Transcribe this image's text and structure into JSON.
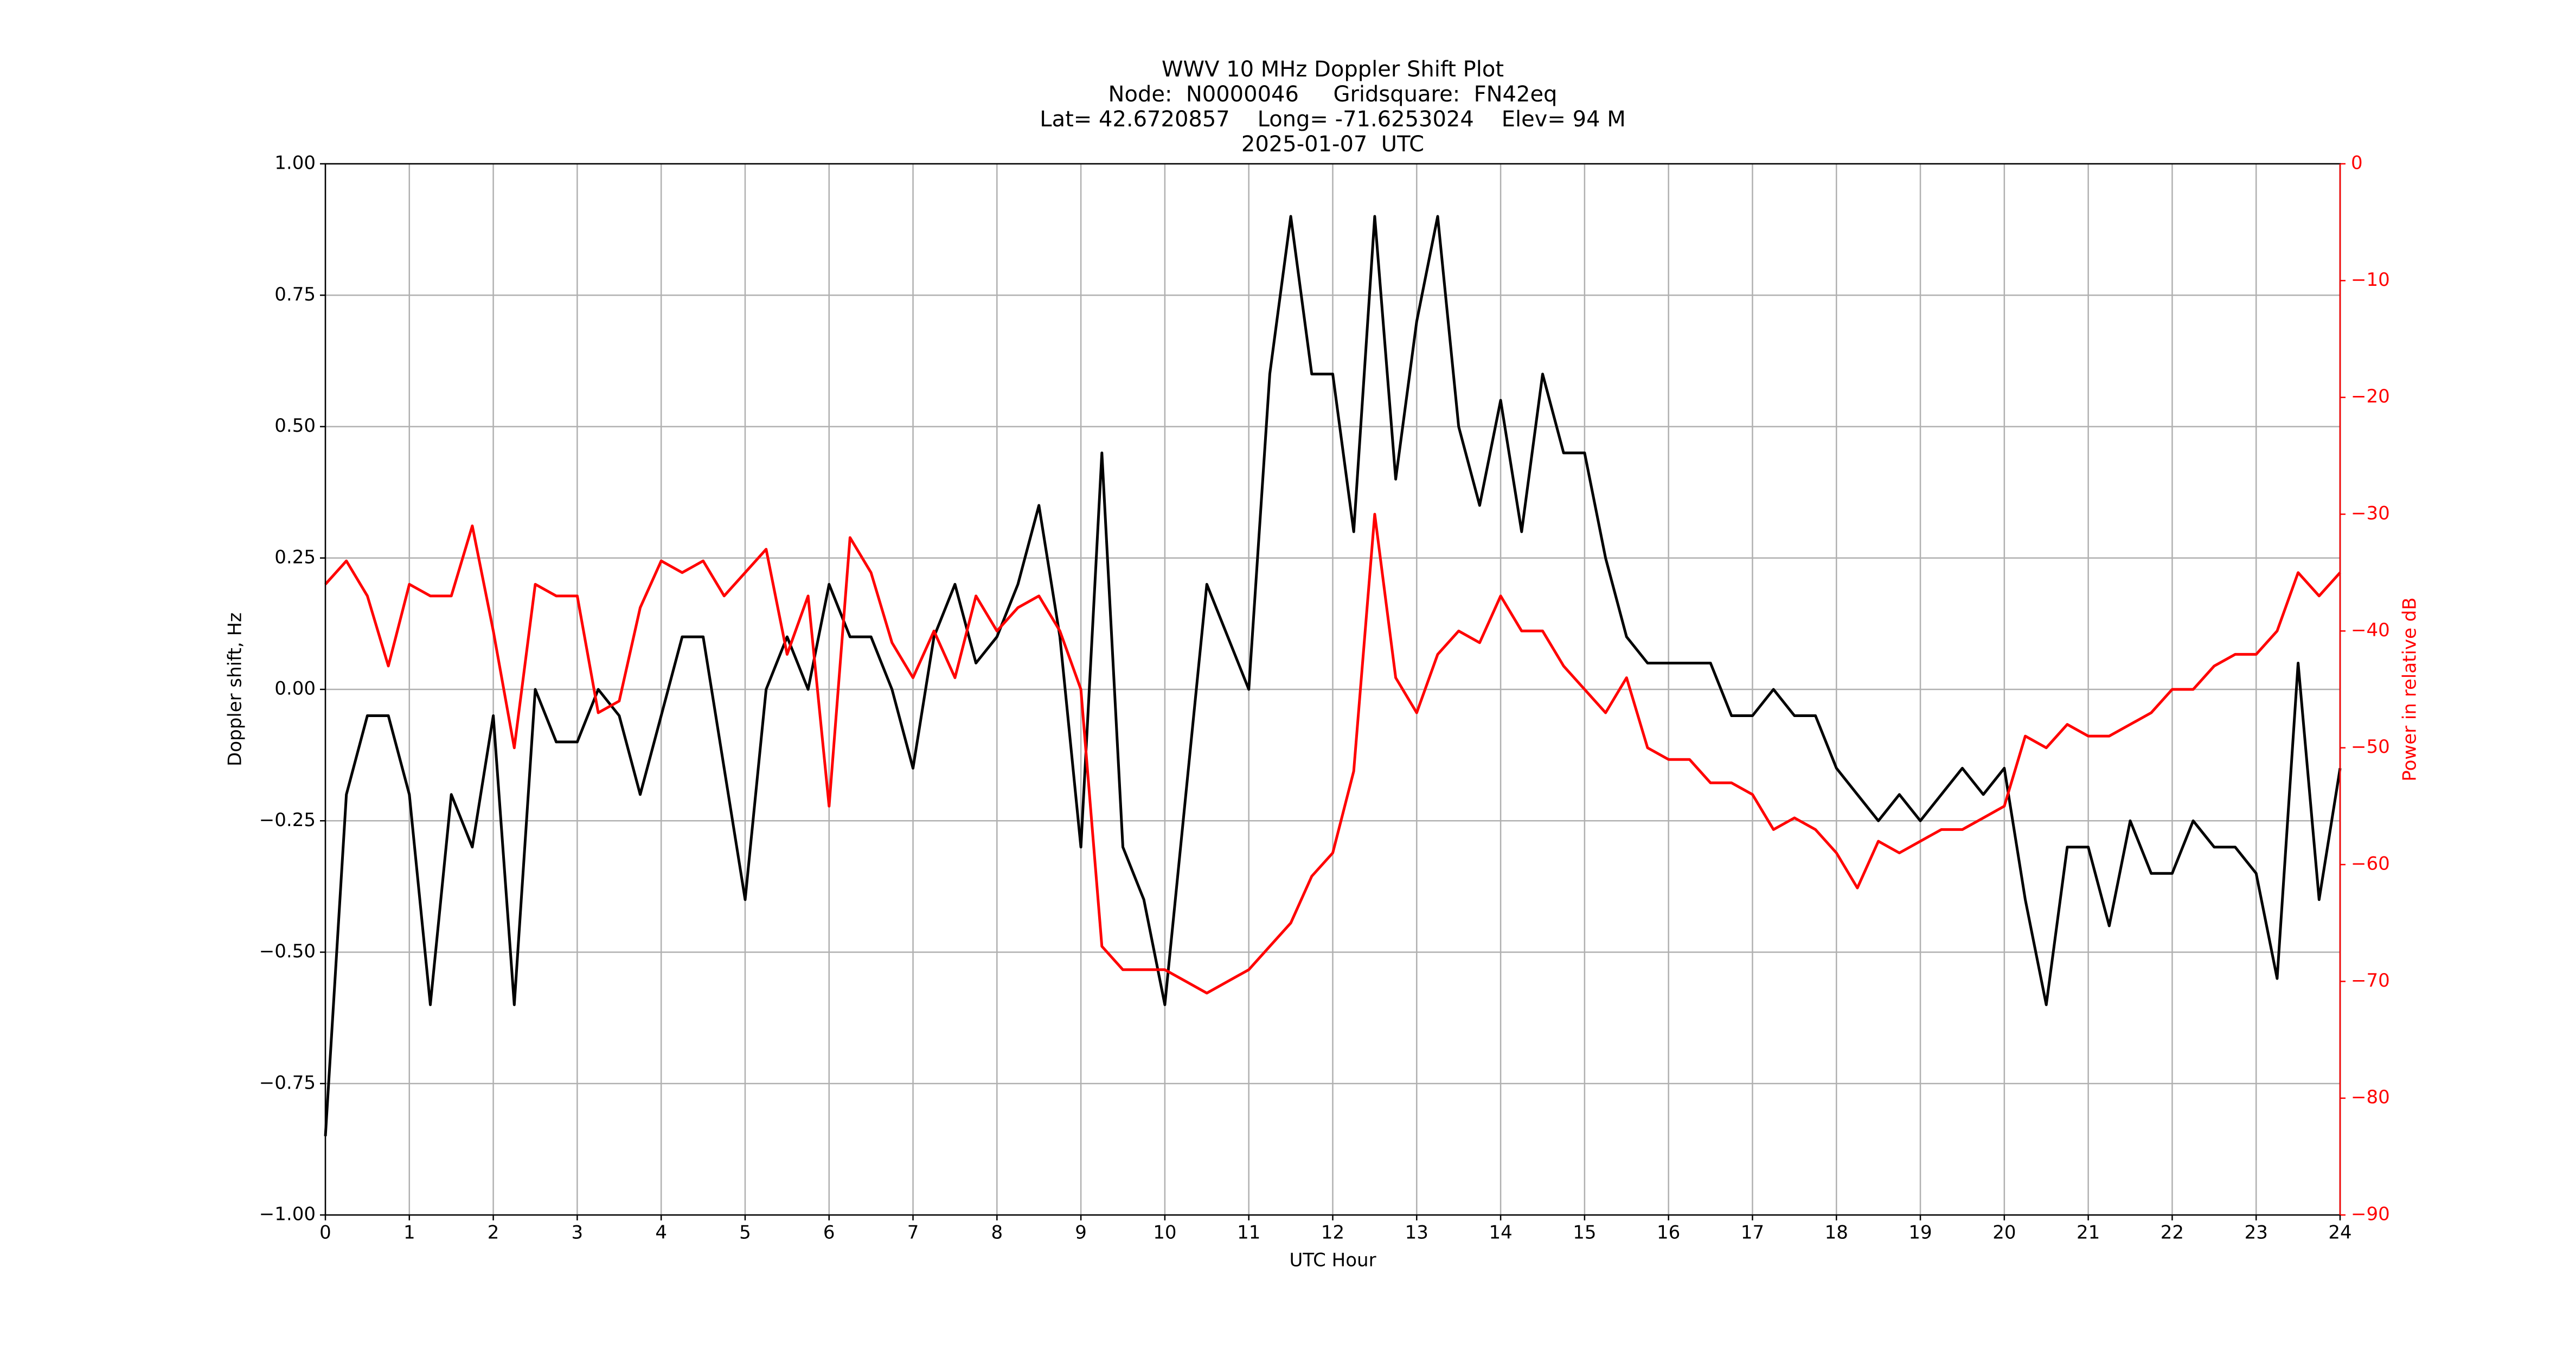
{
  "chart_data": {
    "type": "line",
    "title": [
      "WWV 10 MHz Doppler Shift Plot",
      "Node:  N0000046     Gridsquare:  FN42eq",
      "Lat= 42.6720857    Long= -71.6253024    Elev= 94 M",
      "2025-01-07  UTC"
    ],
    "xlabel": "UTC Hour",
    "ylabel": "Doppler shift, Hz",
    "y2label": "Power in relative dB",
    "y2color": "#ff0000",
    "grid": true,
    "x": [
      0,
      0.25,
      0.5,
      0.75,
      1,
      1.25,
      1.5,
      1.75,
      2,
      2.25,
      2.5,
      2.75,
      3,
      3.25,
      3.5,
      3.75,
      4,
      4.25,
      4.5,
      4.75,
      5,
      5.25,
      5.5,
      5.75,
      6,
      6.25,
      6.5,
      6.75,
      7,
      7.25,
      7.5,
      7.75,
      8,
      8.25,
      8.5,
      8.75,
      9,
      9.25,
      9.5,
      9.75,
      10,
      10.25,
      10.5,
      10.75,
      11,
      11.25,
      11.5,
      11.75,
      12,
      12.25,
      12.5,
      12.75,
      13,
      13.25,
      13.5,
      13.75,
      14,
      14.25,
      14.5,
      14.75,
      15,
      15.25,
      15.5,
      15.75,
      16,
      16.25,
      16.5,
      16.75,
      17,
      17.25,
      17.5,
      17.75,
      18,
      18.25,
      18.5,
      18.75,
      19,
      19.25,
      19.5,
      19.75,
      20,
      20.25,
      20.5,
      20.75,
      21,
      21.25,
      21.5,
      21.75,
      22,
      22.25,
      22.5,
      22.75,
      23,
      23.25,
      23.5,
      23.75,
      24
    ],
    "series": [
      {
        "color": "#000000",
        "values": [
          -0.85,
          -0.2,
          -0.05,
          -0.05,
          -0.2,
          -0.6,
          -0.2,
          -0.3,
          -0.05,
          -0.6,
          0.0,
          -0.1,
          -0.1,
          0.0,
          -0.05,
          -0.2,
          -0.05,
          0.1,
          0.1,
          -0.15,
          -0.4,
          0.0,
          0.1,
          0.0,
          0.2,
          0.1,
          0.1,
          0.0,
          -0.15,
          0.1,
          0.2,
          0.05,
          0.1,
          0.2,
          0.35,
          0.1,
          -0.3,
          0.45,
          -0.3,
          -0.4,
          -0.6,
          -0.2,
          0.2,
          0.1,
          0.0,
          0.6,
          0.9,
          0.6,
          0.6,
          0.3,
          0.9,
          0.4,
          0.7,
          0.9,
          0.5,
          0.35,
          0.55,
          0.3,
          0.6,
          0.45,
          0.45,
          0.25,
          0.1,
          0.05,
          0.05,
          0.05,
          0.05,
          -0.05,
          -0.05,
          0.0,
          -0.05,
          -0.05,
          -0.15,
          -0.2,
          -0.25,
          -0.2,
          -0.25,
          -0.2,
          -0.15,
          -0.2,
          -0.15,
          -0.4,
          -0.6,
          -0.3,
          -0.3,
          -0.45,
          -0.25,
          -0.35,
          -0.35,
          -0.25,
          -0.3,
          -0.3,
          -0.35,
          -0.55,
          0.05,
          -0.4,
          -0.15
        ]
      },
      {
        "color": "#ff0000",
        "axis": "y2",
        "values": [
          -36,
          -34,
          -37,
          -43,
          -36,
          -37,
          -37,
          -31,
          -40,
          -50,
          -36,
          -37,
          -37,
          -47,
          -46,
          -38,
          -34,
          -35,
          -34,
          -37,
          -35,
          -33,
          -42,
          -37,
          -55,
          -32,
          -35,
          -41,
          -44,
          -40,
          -44,
          -37,
          -40,
          -38,
          -37,
          -40,
          -45,
          -67,
          -69,
          -69,
          -69,
          -70,
          -71,
          -70,
          -69,
          -67,
          -65,
          -61,
          -59,
          -52,
          -30,
          -44,
          -47,
          -42,
          -40,
          -41,
          -37,
          -40,
          -40,
          -43,
          -45,
          -47,
          -44,
          -50,
          -51,
          -51,
          -53,
          -53,
          -54,
          -57,
          -56,
          -57,
          -59,
          -62,
          -58,
          -59,
          -58,
          -57,
          -57,
          -56,
          -55,
          -49,
          -50,
          -48,
          -49,
          -49,
          -48,
          -47,
          -45,
          -45,
          -43,
          -42,
          -42,
          -40,
          -35,
          -37,
          -35
        ]
      }
    ],
    "xlim": [
      0,
      24
    ],
    "xticks": [
      0,
      1,
      2,
      3,
      4,
      5,
      6,
      7,
      8,
      9,
      10,
      11,
      12,
      13,
      14,
      15,
      16,
      17,
      18,
      19,
      20,
      21,
      22,
      23,
      24
    ],
    "ylim": [
      -1,
      1
    ],
    "yticks": [
      {
        "value": -1,
        "label": "−1.00"
      },
      {
        "value": -0.75,
        "label": "−0.75"
      },
      {
        "value": -0.5,
        "label": "−0.50"
      },
      {
        "value": -0.25,
        "label": "−0.25"
      },
      {
        "value": 0,
        "label": "0.00"
      },
      0.25,
      {
        "value": 0.5,
        "label": "0.50"
      },
      0.75,
      {
        "value": 1,
        "label": "1.00"
      }
    ],
    "y2lim": [
      -90,
      0
    ],
    "y2ticks": [
      {
        "value": -90,
        "label": "−90"
      },
      {
        "value": -80,
        "label": "−80"
      },
      {
        "value": -70,
        "label": "−70"
      },
      {
        "value": -60,
        "label": "−60"
      },
      {
        "value": -50,
        "label": "−50"
      },
      {
        "value": -40,
        "label": "−40"
      },
      {
        "value": -30,
        "label": "−30"
      },
      {
        "value": -20,
        "label": "−20"
      },
      {
        "value": -10,
        "label": "−10"
      },
      0
    ]
  }
}
